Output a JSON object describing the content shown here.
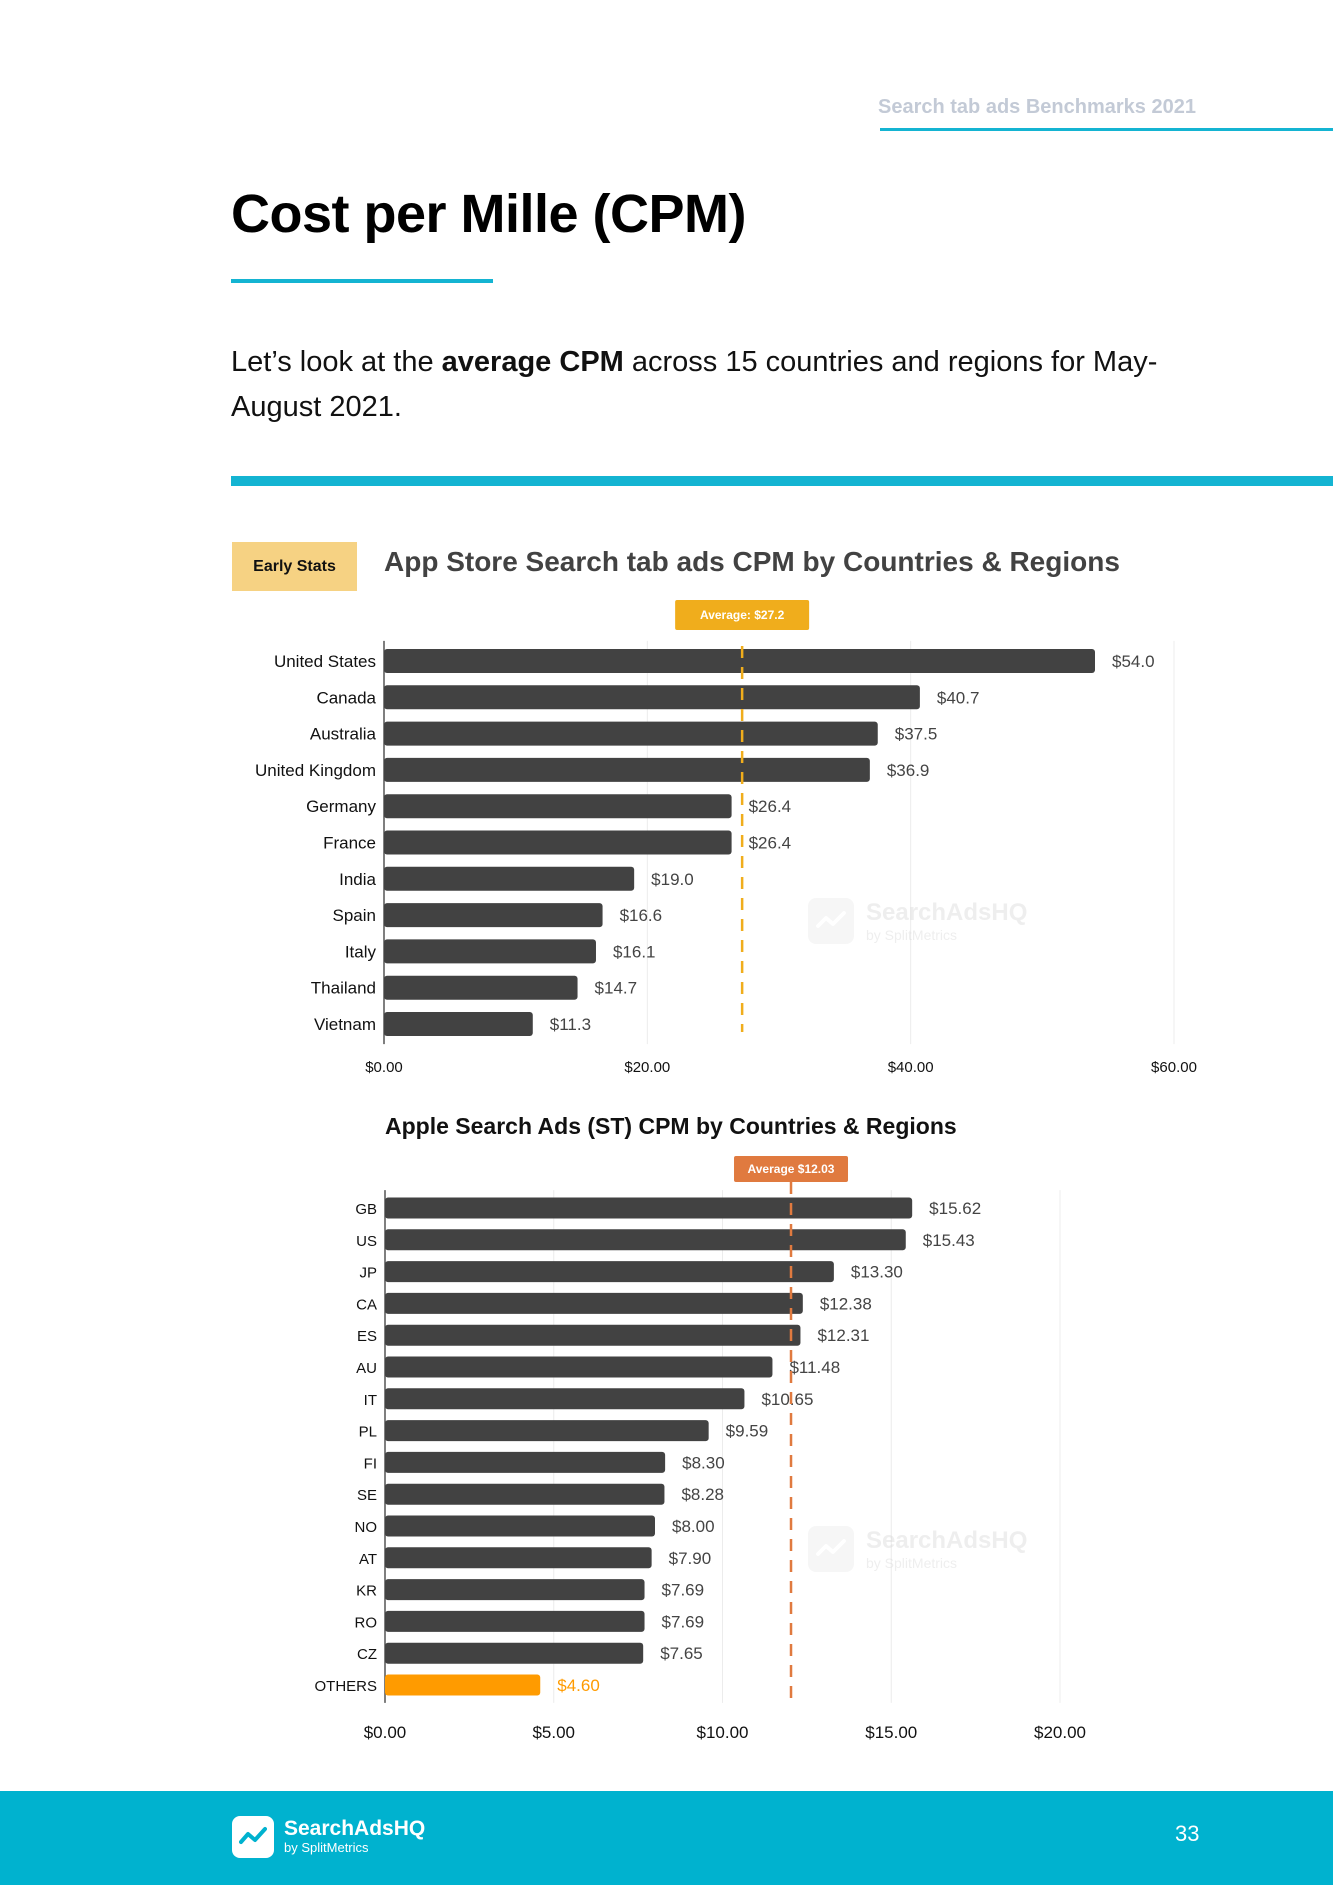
{
  "header": {
    "title": "Search tab ads Benchmarks 2021"
  },
  "page": {
    "title": "Cost per Mille (CPM)",
    "intro_prefix": "Let’s look at the ",
    "intro_bold": "average CPM",
    "intro_suffix": " across 15 countries and regions for May-August 2021.",
    "badge": "Early Stats"
  },
  "colors": {
    "accent": "#14b4d2",
    "bar": "#424242",
    "avg1": "#f0ad1c",
    "avg2": "#e07a3f",
    "others": "#ff9b00"
  },
  "watermark": {
    "name": "SearchAdsHQ",
    "sub": "by SplitMetrics"
  },
  "footer": {
    "logo_name": "SearchAdsHQ",
    "logo_sub": "by SplitMetrics",
    "page_number": "33"
  },
  "chart_data": [
    {
      "type": "bar",
      "orientation": "horizontal",
      "title": "App Store Search tab ads CPM by Countries & Regions",
      "categories": [
        "United States",
        "Canada",
        "Australia",
        "United Kingdom",
        "Germany",
        "France",
        "India",
        "Spain",
        "Italy",
        "Thailand",
        "Vietnam"
      ],
      "values": [
        54.0,
        40.7,
        37.5,
        36.9,
        26.4,
        26.4,
        19.0,
        16.6,
        16.1,
        14.7,
        11.3
      ],
      "value_labels": [
        "$54.0",
        "$40.7",
        "$37.5",
        "$36.9",
        "$26.4",
        "$26.4",
        "$19.0",
        "$16.6",
        "$16.1",
        "$14.7",
        "$11.3"
      ],
      "average": 27.2,
      "average_label": "Average: $27.2",
      "xlim": [
        0,
        60
      ],
      "xticks": [
        0,
        20,
        40,
        60
      ],
      "xtick_labels": [
        "$0.00",
        "$20.00",
        "$40.00",
        "$60.00"
      ],
      "xlabel": "",
      "ylabel": "",
      "grid": true
    },
    {
      "type": "bar",
      "orientation": "horizontal",
      "title": "Apple Search Ads (ST) CPM by Countries & Regions",
      "categories": [
        "GB",
        "US",
        "JP",
        "CA",
        "ES",
        "AU",
        "IT",
        "PL",
        "FI",
        "SE",
        "NO",
        "AT",
        "KR",
        "RO",
        "CZ",
        "OTHERS"
      ],
      "values": [
        15.62,
        15.43,
        13.3,
        12.38,
        12.31,
        11.48,
        10.65,
        9.59,
        8.3,
        8.28,
        8.0,
        7.9,
        7.69,
        7.69,
        7.65,
        4.6
      ],
      "value_labels": [
        "$15.62",
        "$15.43",
        "$13.30",
        "$12.38",
        "$12.31",
        "$11.48",
        "$10.65",
        "$9.59",
        "$8.30",
        "$8.28",
        "$8.00",
        "$7.90",
        "$7.69",
        "$7.69",
        "$7.65",
        "$4.60"
      ],
      "highlight": [
        "OTHERS"
      ],
      "average": 12.03,
      "average_label": "Average $12.03",
      "xlim": [
        0,
        20
      ],
      "xticks": [
        0,
        5,
        10,
        15,
        20
      ],
      "xtick_labels": [
        "$0.00",
        "$5.00",
        "$10.00",
        "$15.00",
        "$20.00"
      ],
      "xlabel": "",
      "ylabel": "",
      "grid": true
    }
  ]
}
